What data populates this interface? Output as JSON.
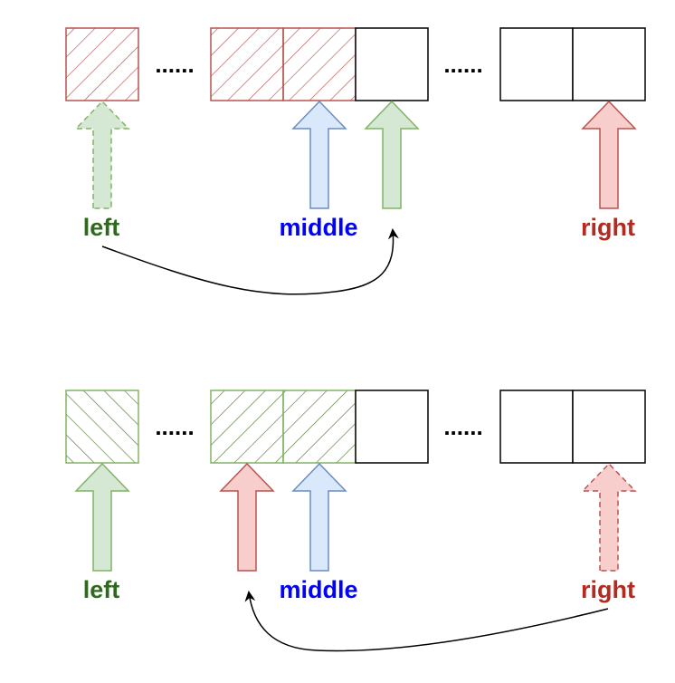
{
  "colors": {
    "left": "#2d6a1f",
    "middle": "#0000ff",
    "right": "#b52a1f",
    "green_fill": "#d5e8d4",
    "green_stroke": "#82b366",
    "blue_fill": "#dae8fc",
    "blue_stroke": "#6c8ebf",
    "red_fill": "#f8cecc",
    "red_stroke": "#b85450"
  },
  "top": {
    "labels": {
      "left": "left",
      "middle": "middle",
      "right": "right"
    },
    "ellipsis_1": "......",
    "ellipsis_2": "......"
  },
  "bottom": {
    "labels": {
      "left": "left",
      "middle": "middle",
      "right": "right"
    },
    "ellipsis_1": "......",
    "ellipsis_2": "......"
  }
}
